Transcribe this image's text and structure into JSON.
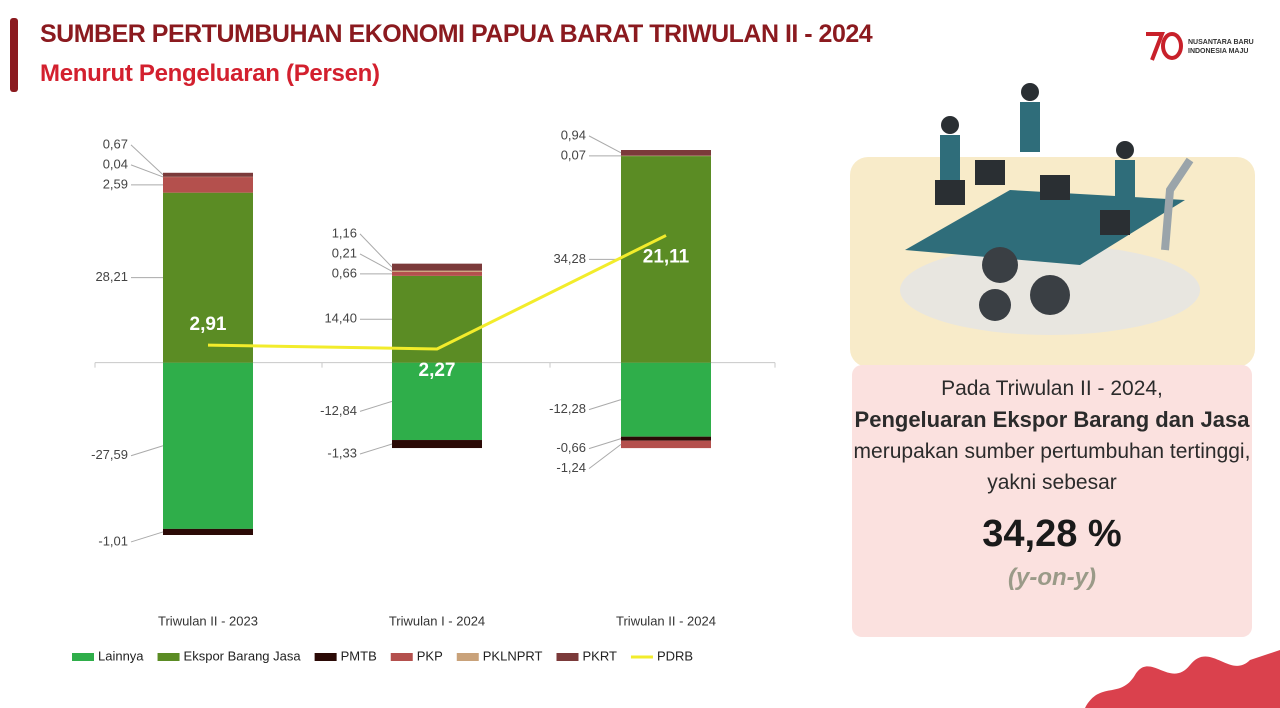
{
  "header": {
    "title": "SUMBER PERTUMBUHAN EKONOMI PAPUA BARAT TRIWULAN II - 2024",
    "subtitle": "Menurut Pengeluaran (Persen)",
    "logo": "NUSANTARA BARU INDONESIA MAJU"
  },
  "chart_data": {
    "type": "bar",
    "stacked": true,
    "categories": [
      "Triwulan II - 2023",
      "Triwulan I - 2024",
      "Triwulan II - 2024"
    ],
    "series": [
      {
        "name": "Lainnya",
        "color": "#2fae4a",
        "values": [
          -27.59,
          -12.84,
          -12.28
        ],
        "value_labels": [
          "-27,59",
          "-12,84",
          "-12,28"
        ]
      },
      {
        "name": "Ekspor Barang Jasa",
        "color": "#5b8c24",
        "values": [
          28.21,
          14.4,
          34.28
        ],
        "value_labels": [
          "28,21",
          "14,40",
          "34,28"
        ]
      },
      {
        "name": "PMTB",
        "color": "#2b0a06",
        "values": [
          -1.01,
          -1.33,
          -0.66
        ],
        "value_labels": [
          "-1,01",
          "-1,33",
          "-0,66"
        ]
      },
      {
        "name": "PKP",
        "color": "#b4504d",
        "values": [
          2.59,
          0.66,
          -1.24
        ],
        "value_labels": [
          "2,59",
          "0,66",
          "-1,24"
        ]
      },
      {
        "name": "PKLNPRT",
        "color": "#c9a27a",
        "values": [
          0.04,
          0.21,
          0.07
        ],
        "value_labels": [
          "0,04",
          "0,21",
          "0,07"
        ]
      },
      {
        "name": "PKRT",
        "color": "#7b3a3a",
        "values": [
          0.67,
          1.16,
          0.94
        ],
        "value_labels": [
          "0,67",
          "1,16",
          "0,94"
        ]
      },
      {
        "name": "PDRB",
        "color": "#f2ec2b",
        "type": "line",
        "values": [
          2.91,
          2.27,
          21.11
        ],
        "value_labels": [
          "2,91",
          "2,27",
          "21,11"
        ]
      }
    ]
  },
  "panel": {
    "intro": "Pada Triwulan II - 2024,",
    "highlight": "Pengeluaran Ekspor Barang dan Jasa",
    "rest": "merupakan sumber pertumbuhan tertinggi, yakni sebesar",
    "value": "34,28 %",
    "note": "(y-on-y)"
  }
}
